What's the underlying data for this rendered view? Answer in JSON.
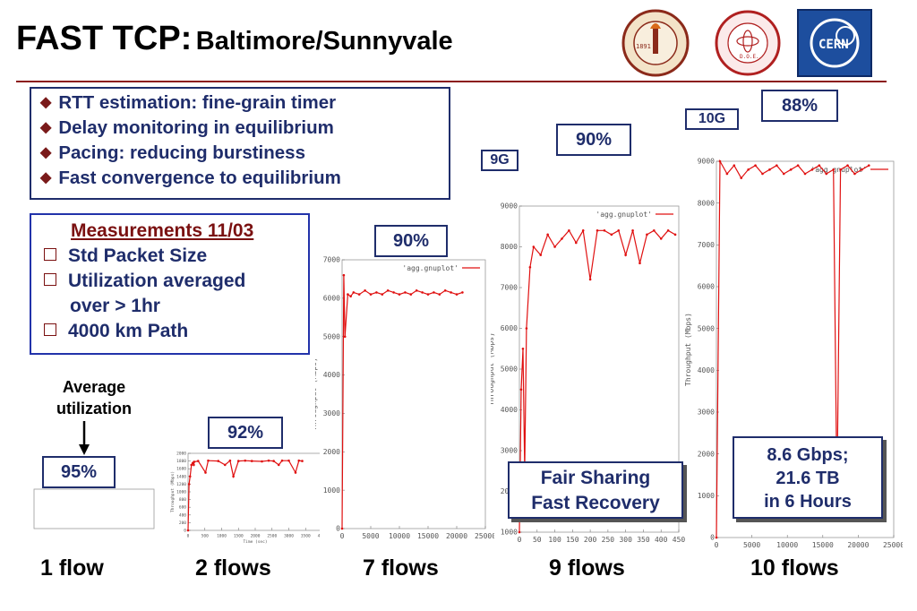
{
  "slide": {
    "title_main": "FAST TCP:",
    "title_sub": "Baltimore/Sunnyvale",
    "logos": {
      "caltech_year": "1891",
      "slac_text": "STANFORD LINEAR ACCELERATOR CENTER",
      "slac_dept": "D.O.E.",
      "cern_text": "CERN"
    },
    "bullets": [
      "RTT estimation: fine-grain timer",
      "Delay monitoring in equilibrium",
      "Pacing: reducing burstiness",
      "Fast convergence to equilibrium"
    ],
    "measurements": {
      "title": "Measurements 11/03",
      "items": [
        "Std Packet Size",
        "Utilization averaged",
        "4000 km Path"
      ],
      "item2_cont": "over > 1hr"
    },
    "annotation": {
      "line1": "Average",
      "line2": "utilization"
    },
    "callouts": {
      "fair1": "Fair Sharing",
      "fair2": "Fast Recovery",
      "gbps1": "8.6 Gbps;",
      "gbps2": "21.6 TB",
      "gbps3": "in 6 Hours"
    },
    "colors": {
      "trace": "#e01010",
      "box_border": "#1f2d6b",
      "accent": "#7a1a1a"
    }
  },
  "chart_data": [
    {
      "type": "line",
      "flows_label": "1 flow",
      "utilization": "95%",
      "series_name": "",
      "xlabel": "",
      "ylabel": "",
      "ylim": [
        0,
        1200
      ],
      "xlim": [
        0,
        25000
      ],
      "y": [],
      "x": []
    },
    {
      "type": "line",
      "flows_label": "2 flows",
      "utilization": "92%",
      "series_name": "",
      "xlabel": "Time (sec)",
      "ylabel": "Throughput (Mbps)",
      "ylim": [
        0,
        2000
      ],
      "xlim": [
        0,
        4000
      ],
      "yticks": [
        "0",
        "200",
        "400",
        "600",
        "800",
        "1000",
        "1200",
        "1400",
        "1600",
        "1800",
        "2000"
      ],
      "xticks": [
        "0",
        "500",
        "1000",
        "1500",
        "2000",
        "2500",
        "3000",
        "3500",
        "4000"
      ],
      "x": [
        0,
        30,
        60,
        100,
        140,
        170,
        180,
        300,
        520,
        600,
        900,
        1100,
        1250,
        1350,
        1500,
        1700,
        1900,
        2200,
        2400,
        2550,
        2700,
        2800,
        3000,
        3200,
        3300,
        3400
      ],
      "y": [
        0,
        1200,
        1400,
        1700,
        1750,
        1700,
        1780,
        1800,
        1500,
        1810,
        1800,
        1700,
        1810,
        1400,
        1800,
        1810,
        1800,
        1790,
        1810,
        1800,
        1700,
        1810,
        1810,
        1500,
        1810,
        1800
      ]
    },
    {
      "type": "line",
      "flows_label": "7 flows",
      "utilization": "90%",
      "series_name": "'agg.gnuplot'",
      "xlabel": "",
      "ylabel": "Throughput (Mbps)",
      "ylim": [
        0,
        7000
      ],
      "xlim": [
        0,
        25000
      ],
      "yticks": [
        "0",
        "1000",
        "2000",
        "3000",
        "4000",
        "5000",
        "6000",
        "7000"
      ],
      "xticks": [
        "0",
        "5000",
        "10000",
        "15000",
        "20000",
        "25000"
      ],
      "x": [
        0,
        300,
        500,
        1000,
        1500,
        2000,
        3000,
        4000,
        5000,
        6000,
        7000,
        8000,
        9000,
        10000,
        11000,
        12000,
        13000,
        14000,
        15000,
        16000,
        17000,
        18000,
        19000,
        20000,
        21000
      ],
      "y": [
        0,
        6600,
        5000,
        6100,
        6050,
        6150,
        6100,
        6200,
        6100,
        6150,
        6100,
        6200,
        6150,
        6100,
        6150,
        6100,
        6200,
        6150,
        6100,
        6150,
        6100,
        6200,
        6150,
        6100,
        6150
      ]
    },
    {
      "type": "line",
      "flows_label": "9 flows",
      "utilization": "90%",
      "g_tag": "9G",
      "series_name": "'agg.gnuplot'",
      "xlabel": "",
      "ylabel": "Throughput (Mbps)",
      "ylim": [
        1000,
        9000
      ],
      "xlim": [
        0,
        450
      ],
      "yticks": [
        "1000",
        "2000",
        "3000",
        "4000",
        "5000",
        "6000",
        "7000",
        "8000",
        "9000"
      ],
      "xticks": [
        "0",
        "50",
        "100",
        "150",
        "200",
        "250",
        "300",
        "350",
        "400",
        "450"
      ],
      "x": [
        0,
        5,
        10,
        15,
        20,
        30,
        40,
        60,
        80,
        100,
        120,
        140,
        160,
        180,
        200,
        220,
        240,
        260,
        280,
        300,
        320,
        340,
        360,
        380,
        400,
        420,
        440
      ],
      "y": [
        1000,
        4500,
        5500,
        2500,
        6000,
        7500,
        8000,
        7800,
        8300,
        8000,
        8200,
        8400,
        8100,
        8400,
        7200,
        8400,
        8400,
        8300,
        8400,
        7800,
        8400,
        7600,
        8300,
        8400,
        8200,
        8400,
        8300
      ]
    },
    {
      "type": "line",
      "flows_label": "10 flows",
      "utilization": "88%",
      "g_tag": "10G",
      "series_name": "'agg.gnuplot'",
      "xlabel": "",
      "ylabel": "Throughput (Mbps)",
      "ylim": [
        0,
        9000
      ],
      "xlim": [
        0,
        25000
      ],
      "yticks": [
        "0",
        "1000",
        "2000",
        "3000",
        "4000",
        "5000",
        "6000",
        "7000",
        "8000",
        "9000"
      ],
      "xticks": [
        "0",
        "5000",
        "10000",
        "15000",
        "20000",
        "25000"
      ],
      "x": [
        0,
        500,
        1500,
        2500,
        3500,
        4500,
        5500,
        6500,
        7500,
        8500,
        9500,
        10500,
        11500,
        12500,
        13500,
        14500,
        15500,
        16500,
        17000,
        17500,
        18500,
        19500,
        20500,
        21500
      ],
      "y": [
        0,
        9000,
        8700,
        8900,
        8600,
        8800,
        8900,
        8700,
        8800,
        8900,
        8700,
        8800,
        8900,
        8700,
        8800,
        8900,
        8700,
        8800,
        1000,
        8800,
        8900,
        8700,
        8800,
        8900
      ]
    }
  ]
}
